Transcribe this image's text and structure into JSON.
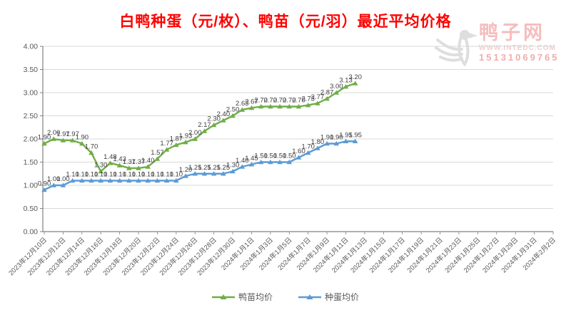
{
  "title": "白鸭种蛋（元/枚）、鸭苗（元/羽）最近平均价格",
  "watermark": {
    "site_name": "鸭子网",
    "url": "WWW.INTEDC.COM",
    "phone": "15131069765"
  },
  "colors": {
    "title_red": "#FF0000",
    "duckling_series_green": "#70AD47",
    "egg_series_blue": "#5B9BD5",
    "gridline": "#D9D9D9",
    "axis": "#808080",
    "tick_label": "#595959",
    "data_label": "#404040"
  },
  "chart_data": {
    "type": "line",
    "title": "白鸭种蛋（元/枚）、鸭苗（元/羽）最近平均价格",
    "xlabel": "",
    "ylabel": "",
    "ylim": [
      0.0,
      4.0
    ],
    "y_tick_step": 0.5,
    "y_tick_labels": [
      "0.00",
      "0.50",
      "1.00",
      "1.50",
      "2.00",
      "2.50",
      "3.00",
      "3.50",
      "4.00"
    ],
    "grid": true,
    "marker": "triangle",
    "legend_position": "bottom",
    "x": [
      "2023年12月10日",
      "2023年12月11日",
      "2023年12月12日",
      "2023年12月13日",
      "2023年12月14日",
      "2023年12月15日",
      "2023年12月16日",
      "2023年12月17日",
      "2023年12月18日",
      "2023年12月19日",
      "2023年12月20日",
      "2023年12月21日",
      "2023年12月22日",
      "2023年12月23日",
      "2023年12月24日",
      "2023年12月25日",
      "2023年12月26日",
      "2023年12月27日",
      "2023年12月28日",
      "2023年12月29日",
      "2023年12月30日",
      "2023年12月31日",
      "2024年1月1日",
      "2024年1月2日",
      "2024年1月3日",
      "2024年1月4日",
      "2024年1月5日",
      "2024年1月6日",
      "2024年1月7日",
      "2024年1月8日",
      "2024年1月9日",
      "2024年1月10日",
      "2024年1月11日",
      "2024年1月12日"
    ],
    "x_axis_tick_labels": [
      "2023年12月10日",
      "2023年12月12日",
      "2023年12月14日",
      "2023年12月16日",
      "2023年12月18日",
      "2023年12月20日",
      "2023年12月22日",
      "2023年12月24日",
      "2023年12月26日",
      "2023年12月28日",
      "2023年12月30日",
      "2024年1月1日",
      "2024年1月3日",
      "2024年1月5日",
      "2024年1月7日",
      "2024年1月9日",
      "2024年1月11日",
      "2024年1月13日",
      "2024年1月15日",
      "2024年1月17日",
      "2024年1月19日",
      "2024年1月21日",
      "2024年1月23日",
      "2024年1月25日",
      "2024年1月27日",
      "2024年1月29日",
      "2024年1月31日",
      "2024年2月2日"
    ],
    "x_axis_total_days": 55,
    "series": [
      {
        "name": "鸭苗均价",
        "color": "#70AD47",
        "values": [
          1.9,
          2.0,
          1.97,
          1.97,
          1.9,
          1.7,
          1.3,
          1.48,
          1.43,
          1.37,
          1.37,
          1.4,
          1.57,
          1.77,
          1.87,
          1.93,
          2.0,
          2.17,
          2.3,
          2.4,
          2.5,
          2.63,
          2.67,
          2.7,
          2.7,
          2.7,
          2.7,
          2.7,
          2.73,
          2.77,
          2.87,
          3.0,
          3.13,
          3.2
        ]
      },
      {
        "name": "种蛋均价",
        "color": "#5B9BD5",
        "values": [
          0.9,
          1.0,
          1.0,
          1.1,
          1.1,
          1.1,
          1.1,
          1.1,
          1.1,
          1.1,
          1.1,
          1.1,
          1.1,
          1.1,
          1.1,
          1.2,
          1.25,
          1.25,
          1.25,
          1.25,
          1.3,
          1.4,
          1.45,
          1.5,
          1.5,
          1.5,
          1.5,
          1.6,
          1.7,
          1.8,
          1.9,
          1.9,
          1.95,
          1.95
        ]
      }
    ]
  }
}
